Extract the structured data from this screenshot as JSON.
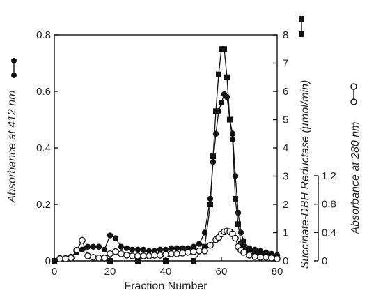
{
  "chart_data": {
    "type": "line",
    "xlabel": "Fraction Number",
    "x_ticks": [
      "0",
      "20",
      "40",
      "60",
      "80"
    ],
    "xlim": [
      0,
      80
    ],
    "axes": {
      "left": {
        "label": "Absorbance at 412 nm",
        "ticks": [
          "0",
          "0.2",
          "0.4",
          "0.6",
          "0.8"
        ],
        "range": [
          0,
          0.8
        ]
      },
      "right_outer": {
        "label": "Succinate-DBH Reductase (µmol/min)",
        "ticks": [
          "0",
          "1",
          "2",
          "3",
          "4",
          "5",
          "6",
          "7",
          "8"
        ],
        "range": [
          0,
          8
        ]
      },
      "right_inner": {
        "label": "Absorbance at 280 nm",
        "ticks": [
          "0",
          "0.4",
          "0.8",
          "1.2"
        ],
        "range": [
          0,
          1.2
        ]
      }
    },
    "series": [
      {
        "marker": "filled-circle",
        "axis": "left",
        "x": [
          2,
          4,
          6,
          8,
          10,
          12,
          14,
          16,
          18,
          20,
          22,
          24,
          26,
          28,
          30,
          32,
          34,
          36,
          38,
          40,
          42,
          44,
          46,
          48,
          50,
          52,
          54,
          56,
          57,
          58,
          59,
          60,
          61,
          62,
          63,
          64,
          65,
          66,
          67,
          68,
          70,
          72,
          74,
          76,
          78,
          80
        ],
        "y": [
          0.01,
          0.01,
          0.015,
          0.03,
          0.04,
          0.05,
          0.05,
          0.05,
          0.04,
          0.09,
          0.08,
          0.05,
          0.045,
          0.04,
          0.04,
          0.04,
          0.035,
          0.035,
          0.04,
          0.04,
          0.045,
          0.045,
          0.045,
          0.045,
          0.05,
          0.06,
          0.1,
          0.22,
          0.35,
          0.45,
          0.53,
          0.56,
          0.59,
          0.58,
          0.5,
          0.45,
          0.3,
          0.17,
          0.1,
          0.07,
          0.045,
          0.04,
          0.035,
          0.03,
          0.025,
          0.02
        ]
      },
      {
        "marker": "filled-square",
        "axis": "right_outer",
        "x": [
          0,
          20,
          30,
          40,
          50,
          54,
          56,
          57,
          58,
          59,
          60,
          61,
          62,
          63,
          64,
          65,
          66,
          67,
          68,
          70,
          72,
          74,
          76,
          78,
          80
        ],
        "y": [
          0,
          0,
          0,
          0,
          0,
          0.5,
          2,
          3.7,
          5.3,
          6.6,
          7.5,
          7.5,
          6.5,
          5,
          4.3,
          2.2,
          1.3,
          0.6,
          0.5,
          0.4,
          0.3,
          0.25,
          0.2,
          0.15,
          0.1
        ]
      },
      {
        "marker": "open-circle",
        "axis": "right_inner",
        "x": [
          2,
          4,
          6,
          8,
          10,
          12,
          14,
          16,
          18,
          20,
          22,
          24,
          26,
          28,
          30,
          32,
          34,
          36,
          38,
          40,
          42,
          44,
          46,
          48,
          50,
          52,
          54,
          56,
          58,
          59,
          60,
          61,
          62,
          63,
          64,
          65,
          66,
          67,
          68,
          70,
          72,
          74,
          76,
          78,
          80
        ],
        "y": [
          0.03,
          0.03,
          0.04,
          0.15,
          0.29,
          0.07,
          0.05,
          0.04,
          0.04,
          0.1,
          0.13,
          0.1,
          0.08,
          0.07,
          0.07,
          0.07,
          0.07,
          0.08,
          0.08,
          0.09,
          0.1,
          0.1,
          0.11,
          0.12,
          0.13,
          0.14,
          0.14,
          0.22,
          0.3,
          0.33,
          0.38,
          0.41,
          0.42,
          0.41,
          0.38,
          0.32,
          0.2,
          0.15,
          0.12,
          0.08,
          0.06,
          0.05,
          0.05,
          0.04,
          0.03
        ]
      }
    ]
  }
}
